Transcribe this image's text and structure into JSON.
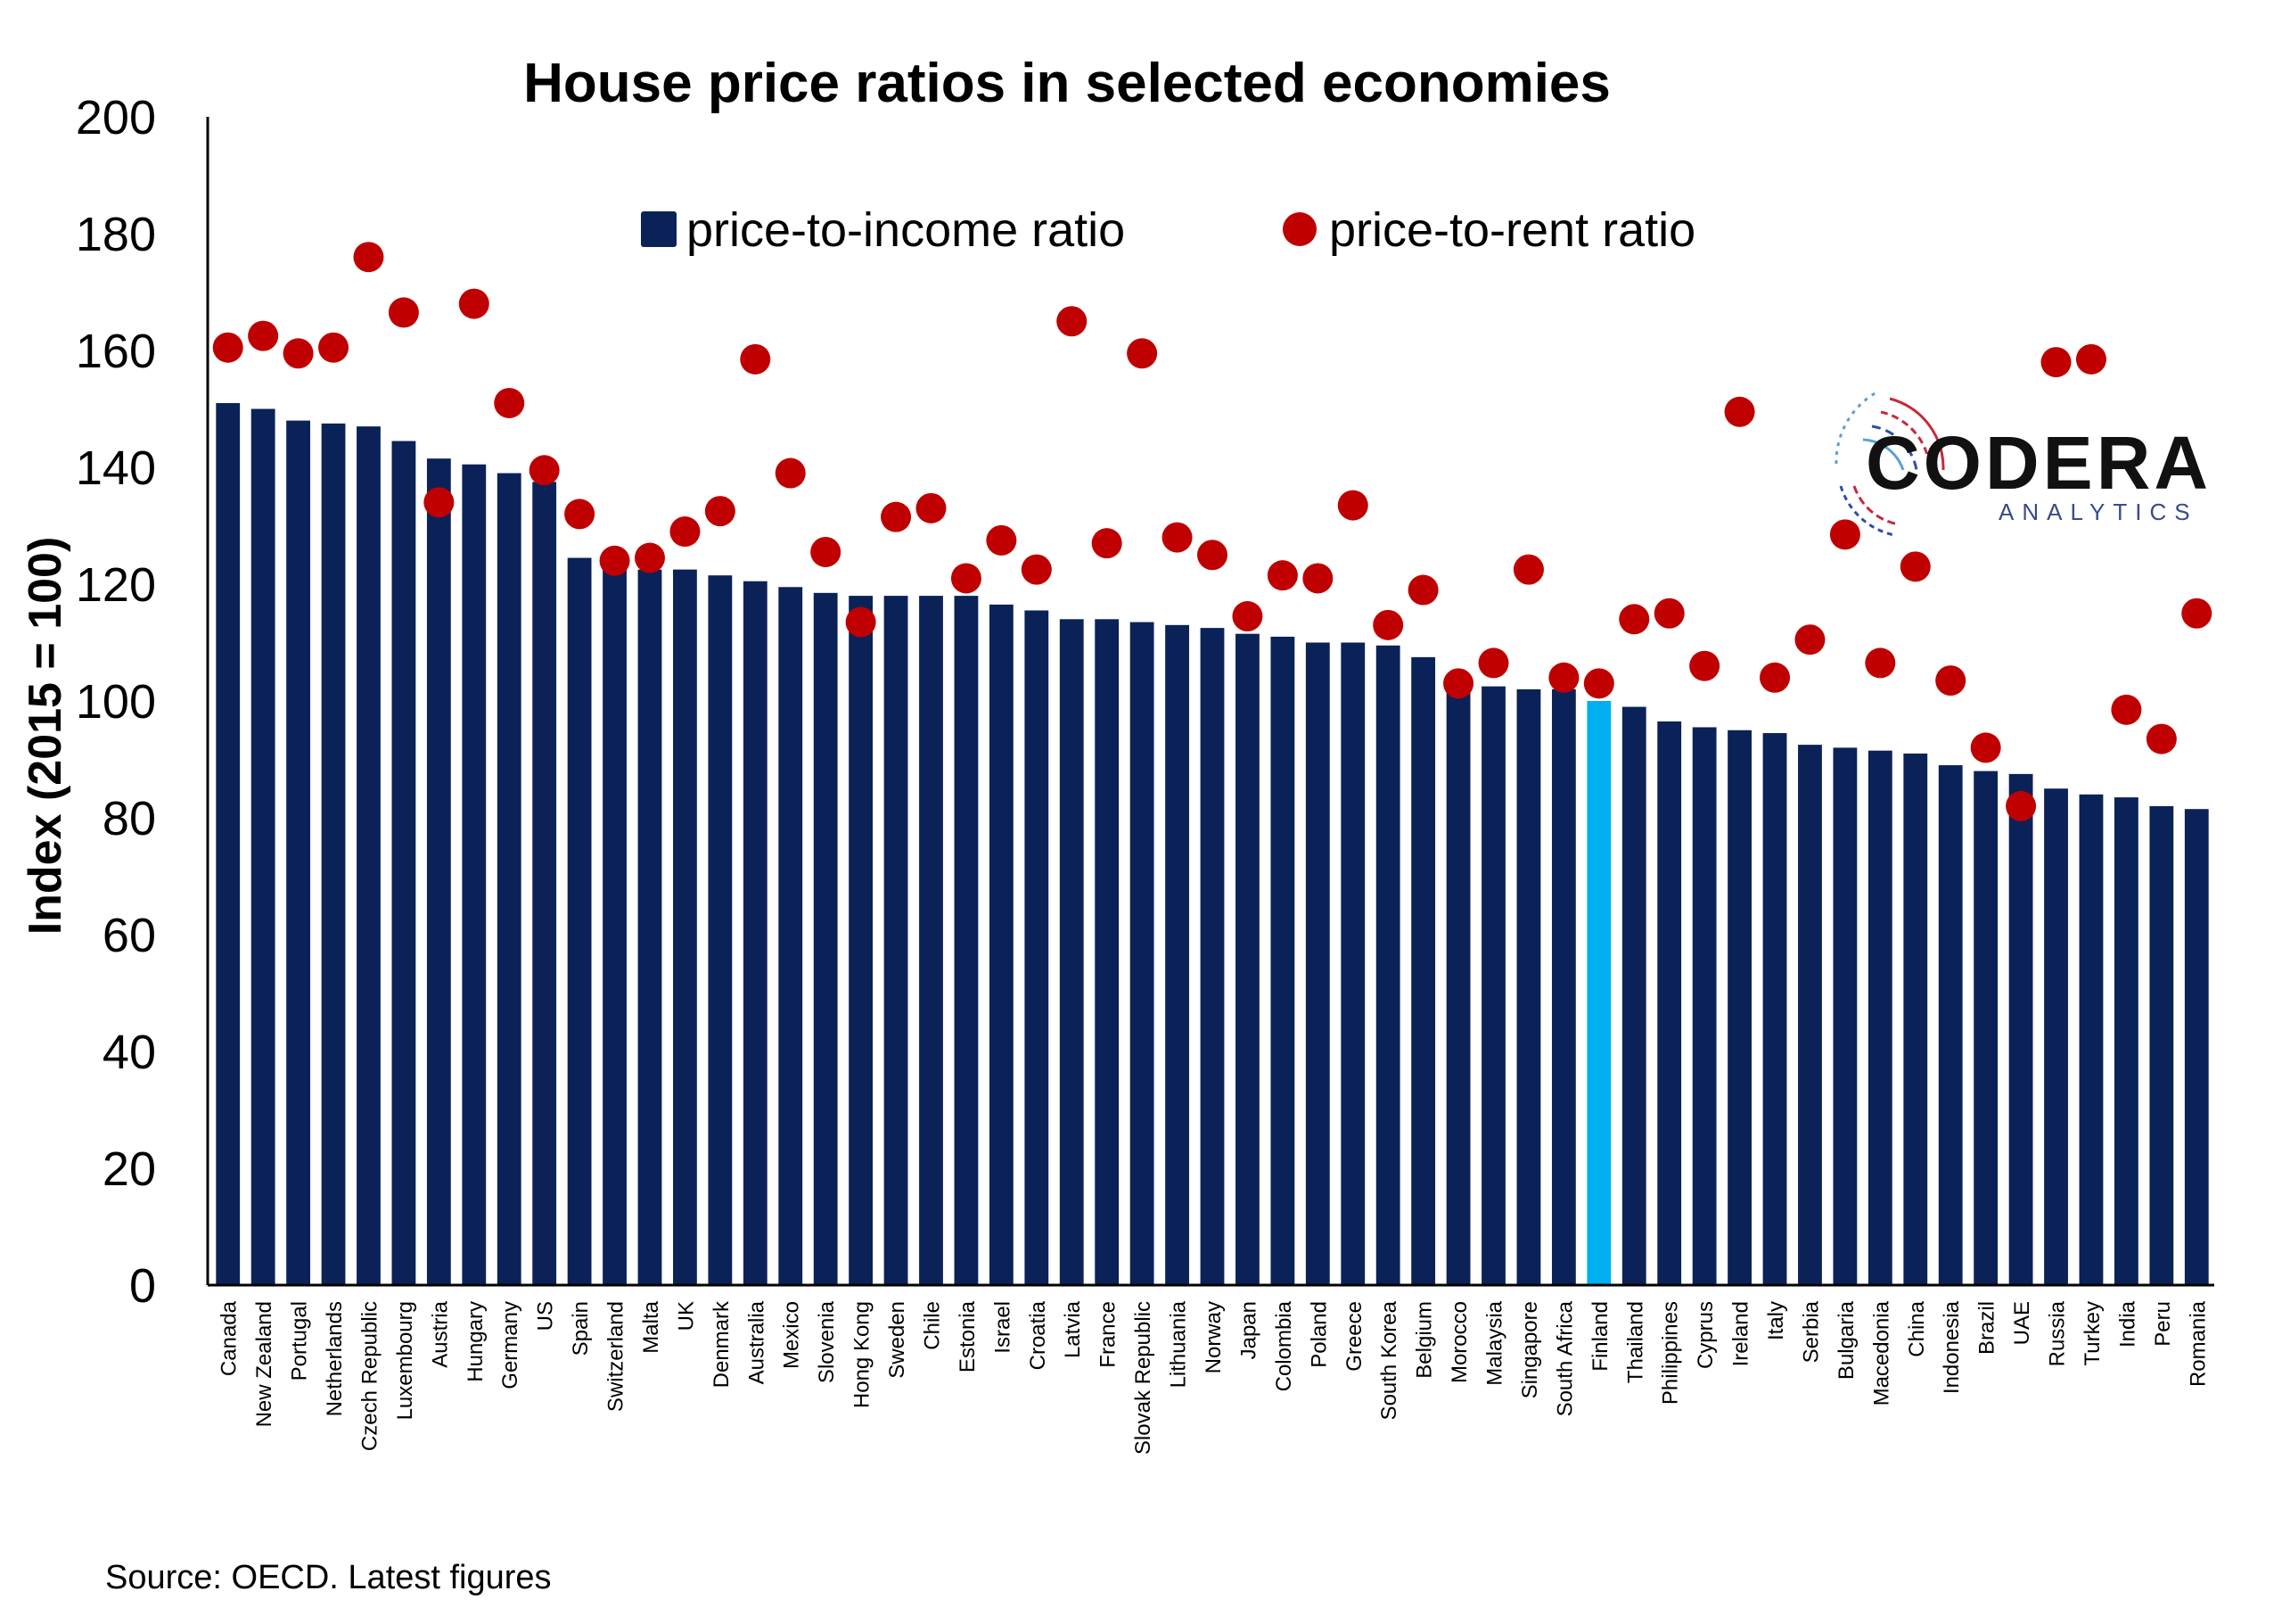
{
  "chart_data": {
    "type": "bar",
    "title": "House price ratios in selected economies",
    "ylabel": "Index (2015 = 100)",
    "xlabel": "",
    "ylim": [
      0,
      200
    ],
    "yticks": [
      0,
      20,
      40,
      60,
      80,
      100,
      120,
      140,
      160,
      180,
      200
    ],
    "grid": false,
    "legend": "top-center",
    "categories": [
      "Canada",
      "New Zealand",
      "Portugal",
      "Netherlands",
      "Czech Republic",
      "Luxembourg",
      "Austria",
      "Hungary",
      "Germany",
      "US",
      "Spain",
      "Switzerland",
      "Malta",
      "UK",
      "Denmark",
      "Australia",
      "Mexico",
      "Slovenia",
      "Hong Kong",
      "Sweden",
      "Chile",
      "Estonia",
      "Israel",
      "Croatia",
      "Latvia",
      "France",
      "Slovak Republic",
      "Lithuania",
      "Norway",
      "Japan",
      "Colombia",
      "Poland",
      "Greece",
      "South Korea",
      "Belgium",
      "Morocco",
      "Malaysia",
      "Singapore",
      "South Africa",
      "Finland",
      "Thailand",
      "Philippines",
      "Cyprus",
      "Ireland",
      "Italy",
      "Serbia",
      "Bulgaria",
      "Macedonia",
      "China",
      "Indonesia",
      "Brazil",
      "UAE",
      "Russia",
      "Turkey",
      "India",
      "Peru",
      "Romania"
    ],
    "series": [
      {
        "name": "price-to-income ratio",
        "kind": "bar",
        "color": "#0b2258",
        "highlight": {
          "category": "Finland",
          "color": "#00b0f0"
        },
        "values": [
          151,
          150,
          148,
          147.5,
          147,
          144.5,
          141.5,
          140.5,
          139,
          137.5,
          124.5,
          124,
          122.5,
          122.5,
          121.5,
          120.5,
          119.5,
          118.5,
          118,
          118,
          118,
          118,
          116.5,
          115.5,
          114,
          114,
          113.5,
          113,
          112.5,
          111.5,
          111,
          110,
          110,
          109.5,
          107.5,
          103,
          102.5,
          102,
          102,
          100,
          99,
          96.5,
          95.5,
          95,
          94.5,
          92.5,
          92,
          91.5,
          91,
          89,
          88,
          87.5,
          85,
          84,
          83.5,
          82,
          81.5
        ]
      },
      {
        "name": "price-to-rent ratio",
        "kind": "point",
        "color": "#c00000",
        "values": [
          160.5,
          162.5,
          159.5,
          160.5,
          176,
          166.5,
          134,
          168,
          151,
          139.5,
          132,
          124,
          124.5,
          129,
          132.5,
          158.5,
          139,
          125.5,
          113.5,
          131.5,
          133,
          121,
          127.5,
          122.5,
          165,
          127,
          159.5,
          128,
          125,
          114.5,
          121.5,
          121,
          133.5,
          113,
          119,
          103,
          106.5,
          122.5,
          104,
          103,
          114,
          115,
          106,
          149.5,
          104,
          110.5,
          128.5,
          106.5,
          123,
          103.5,
          92,
          82,
          158,
          158.5,
          98.5,
          93.5,
          115
        ]
      }
    ]
  },
  "source": "Source: OECD. Latest figures",
  "logo": {
    "name": "CODERA",
    "tagline": "ANALYTICS",
    "colors": {
      "red": "#c8283c",
      "blue": "#2b4fa5",
      "light_blue": "#5aa0d8"
    }
  }
}
